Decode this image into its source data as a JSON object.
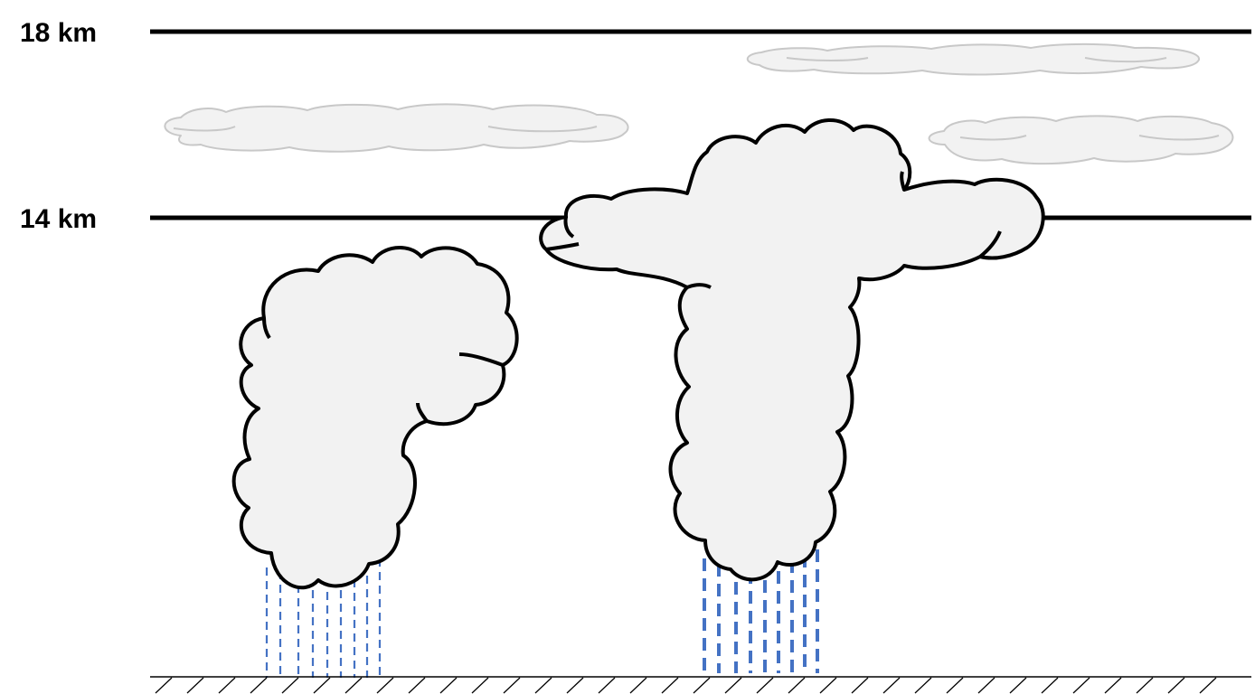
{
  "levels": [
    {
      "label": "18 km",
      "altitude_km": 18
    },
    {
      "label": "14 km",
      "altitude_km": 14
    }
  ],
  "clouds": [
    {
      "name": "cirrus-left-high",
      "kind": "cirrus"
    },
    {
      "name": "cirrus-right-top",
      "kind": "cirrus"
    },
    {
      "name": "cirrus-right-mid",
      "kind": "cirrus"
    },
    {
      "name": "cumulonimbus-left",
      "kind": "cumulonimbus",
      "reaches_14km": false
    },
    {
      "name": "cumulonimbus-right",
      "kind": "cumulonimbus-anvil",
      "reaches_14km": true
    }
  ],
  "rain": [
    {
      "cloud": "cumulonimbus-left",
      "intensity": "light"
    },
    {
      "cloud": "cumulonimbus-right",
      "intensity": "heavy"
    }
  ],
  "colors": {
    "cloud_fill": "#f2f2f2",
    "cloud_outline": "#000000",
    "cirrus_outline": "#c8c8c8",
    "rain": "#4472c4",
    "reference_lines": "#000000"
  }
}
